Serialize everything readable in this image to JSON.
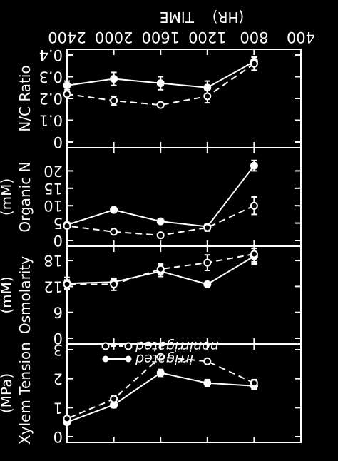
{
  "figure": {
    "orientation": "rotated 180 degrees",
    "background": "#000000",
    "foreground": "#ffffff"
  },
  "legend": {
    "irrigated_label": "irrigated",
    "nonirrigated_label": "nonirrigated"
  },
  "chart_data": [
    {
      "type": "line",
      "panel": "nc",
      "ylabel": "N/C Ratio",
      "x_title": "TIME",
      "x_unit": "(HR)",
      "x": [
        800,
        1200,
        1600,
        2000,
        2400
      ],
      "xticks": [
        "400",
        "800",
        "1200",
        "1600",
        "2000",
        "2400"
      ],
      "xlim": [
        400,
        2400
      ],
      "ylim": [
        0,
        0.4
      ],
      "yticks": [
        "0",
        "0.1",
        "0.2",
        "0.3",
        "0.4"
      ],
      "y_inverted": true,
      "series": [
        {
          "name": "irrigated",
          "style": "solid",
          "marker": "filled-circle",
          "values": [
            0.37,
            0.25,
            0.27,
            0.29,
            0.26
          ],
          "err": [
            0.02,
            0.03,
            0.03,
            0.03,
            0.02
          ]
        },
        {
          "name": "nonirrigated",
          "style": "dashed",
          "marker": "open-circle",
          "values": [
            0.36,
            0.21,
            0.17,
            0.19,
            0.22
          ],
          "err": [
            0.03,
            0.03,
            0.01,
            0.02,
            0.01
          ]
        }
      ]
    },
    {
      "type": "line",
      "panel": "organic",
      "ylabel": "Organic N",
      "yunit": "(mM)",
      "x": [
        800,
        1200,
        1600,
        2000,
        2400
      ],
      "xlim": [
        400,
        2400
      ],
      "ylim": [
        0,
        25
      ],
      "yticks": [
        "0",
        "5",
        "10",
        "15",
        "20"
      ],
      "y_inverted": true,
      "series": [
        {
          "name": "irrigated",
          "style": "solid",
          "marker": "filled-circle",
          "values": [
            21.5,
            4.0,
            5.5,
            8.8,
            4.5
          ],
          "err": [
            1.5,
            0.8,
            0.4,
            0.5,
            0.5
          ]
        },
        {
          "name": "nonirrigated",
          "style": "dashed",
          "marker": "open-circle",
          "values": [
            10.0,
            3.7,
            1.5,
            2.5,
            4.2
          ],
          "err": [
            2.5,
            1.0,
            0.4,
            0.4,
            0.6
          ]
        }
      ]
    },
    {
      "type": "line",
      "panel": "osmolarity",
      "ylabel": "Osmolarity",
      "yunit": "(mM)",
      "x": [
        800,
        1200,
        1600,
        2000,
        2400
      ],
      "xlim": [
        400,
        2400
      ],
      "ylim": [
        0,
        20
      ],
      "yticks": [
        "0",
        "6",
        "12",
        "18"
      ],
      "y_inverted": true,
      "series": [
        {
          "name": "irrigated",
          "style": "solid",
          "marker": "filled-circle",
          "values": [
            19.0,
            12.5,
            15.5,
            13.0,
            12.7
          ],
          "err": [
            1.8,
            0.4,
            1.2,
            0.8,
            1.4
          ]
        },
        {
          "name": "nonirrigated",
          "style": "dashed",
          "marker": "open-circle",
          "values": [
            19.5,
            17.5,
            16.0,
            12.5,
            12.5
          ],
          "err": [
            1.8,
            1.8,
            1.2,
            1.4,
            1.0
          ]
        }
      ]
    },
    {
      "type": "line",
      "panel": "xylem",
      "ylabel": "Xylem Tension",
      "yunit": "(MPa)",
      "x": [
        800,
        1200,
        1600,
        2000,
        2400
      ],
      "xlim": [
        400,
        2400
      ],
      "ylim": [
        0,
        3
      ],
      "yticks": [
        "0",
        "1",
        "2",
        "3"
      ],
      "y_inverted": true,
      "series": [
        {
          "name": "irrigated",
          "style": "solid",
          "marker": "filled-circle",
          "values": [
            1.75,
            1.85,
            2.2,
            1.1,
            0.5
          ],
          "err": [
            0.12,
            0.12,
            0.12,
            0.1,
            0.06
          ]
        },
        {
          "name": "nonirrigated",
          "style": "dashed",
          "marker": "open-circle",
          "values": [
            1.85,
            2.6,
            2.75,
            1.3,
            0.62
          ],
          "err": [
            0.12,
            0.08,
            0.08,
            0.1,
            0.06
          ]
        }
      ]
    }
  ]
}
